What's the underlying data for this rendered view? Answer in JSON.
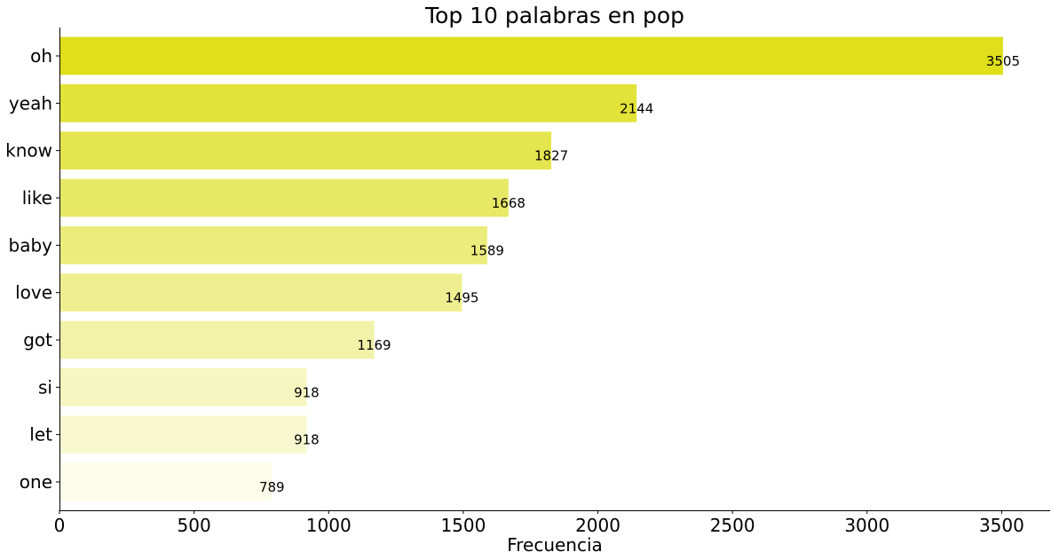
{
  "chart_data": {
    "type": "bar",
    "orientation": "horizontal",
    "title": "Top 10 palabras en pop",
    "xlabel": "Frecuencia",
    "ylabel": "",
    "categories": [
      "oh",
      "yeah",
      "know",
      "like",
      "baby",
      "love",
      "got",
      "si",
      "let",
      "one"
    ],
    "values": [
      3505,
      2144,
      1827,
      1668,
      1589,
      1495,
      1169,
      918,
      918,
      789
    ],
    "xlim": [
      0,
      3680
    ],
    "xticks": [
      0,
      500,
      1000,
      1500,
      2000,
      2500,
      3000,
      3500
    ],
    "grid": false,
    "legend": "none",
    "colors": [
      "#dfdf1a",
      "#e2e238",
      "#e5e550",
      "#e8e867",
      "#ecec7c",
      "#efef91",
      "#f2f2a8",
      "#f6f6c0",
      "#f8f8d0",
      "#fcfce8"
    ]
  }
}
